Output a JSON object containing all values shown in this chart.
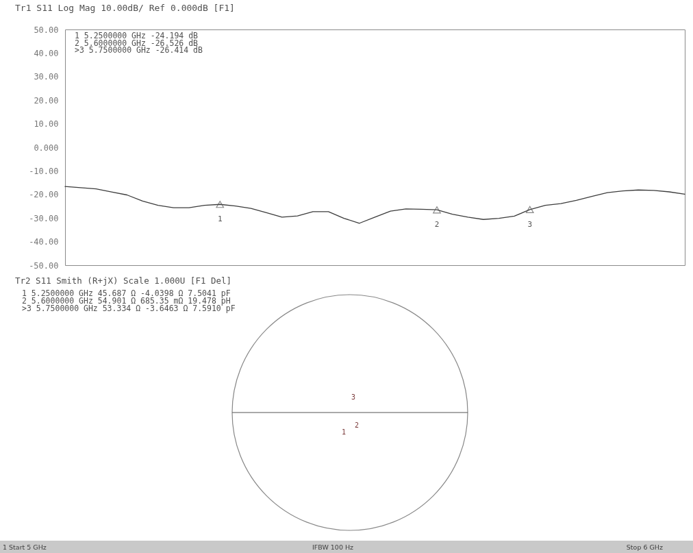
{
  "chart_data": [
    {
      "type": "line",
      "title": "Tr1 S11 Log Mag 10.00dB/ Ref 0.000dB [F1]",
      "categories": [
        null,
        null,
        null,
        null,
        null,
        null,
        null,
        null,
        null,
        null,
        null,
        null,
        null,
        null,
        null,
        null,
        null,
        null,
        null,
        null,
        null,
        null,
        null,
        null,
        null,
        null,
        null,
        null,
        null,
        null,
        null,
        null,
        null,
        null,
        null,
        null,
        null,
        null,
        null,
        null,
        null
      ],
      "series": [
        {
          "color": "#3c3c3c",
          "values": [
            -16.6,
            -17.1,
            -17.6,
            -18.9,
            -20.2,
            -22.8,
            -24.6,
            -25.6,
            -25.6,
            -24.6,
            -24.2,
            -24.9,
            -25.9,
            -27.7,
            -29.6,
            -29.1,
            -27.3,
            -27.3,
            -30.1,
            -32.2,
            -29.6,
            -27.1,
            -26.1,
            -26.3,
            -26.5,
            -28.4,
            -29.6,
            -30.6,
            -30.1,
            -29.2,
            -26.4,
            -24.6,
            -23.9,
            -22.5,
            -20.8,
            -19.2,
            -18.5,
            -18.1,
            -18.3,
            -18.9,
            -19.9
          ]
        },
        {
          "type": "scatter",
          "name": "1",
          "color": "#555555",
          "marker": "triangle",
          "values": [
            null,
            null,
            null,
            null,
            null,
            null,
            null,
            null,
            null,
            null,
            -24.194,
            null,
            null,
            null,
            null,
            null,
            null,
            null,
            null,
            null,
            null,
            null,
            null,
            null,
            null,
            null,
            null,
            null,
            null,
            null,
            null,
            null,
            null,
            null,
            null,
            null,
            null,
            null,
            null,
            null,
            null
          ]
        },
        {
          "type": "scatter",
          "name": "2",
          "color": "#555555",
          "marker": "triangle",
          "values": [
            null,
            null,
            null,
            null,
            null,
            null,
            null,
            null,
            null,
            null,
            null,
            null,
            null,
            null,
            null,
            null,
            null,
            null,
            null,
            null,
            null,
            null,
            null,
            null,
            -26.526,
            null,
            null,
            null,
            null,
            null,
            null,
            null,
            null,
            null,
            null,
            null,
            null,
            null,
            null,
            null,
            null
          ]
        },
        {
          "type": "scatter",
          "name": "3",
          "color": "#555555",
          "marker": "triangle",
          "values": [
            null,
            null,
            null,
            null,
            null,
            null,
            null,
            null,
            null,
            null,
            null,
            null,
            null,
            null,
            null,
            null,
            null,
            null,
            null,
            null,
            null,
            null,
            null,
            null,
            null,
            null,
            null,
            null,
            null,
            null,
            -26.414,
            null,
            null,
            null,
            null,
            null,
            null,
            null,
            null,
            null,
            null
          ]
        }
      ],
      "ylim": [
        -50,
        50
      ],
      "yticks": [
        {
          "value": 50,
          "label": "50.00"
        },
        {
          "value": 40,
          "label": "40.00"
        },
        {
          "value": 30,
          "label": "30.00"
        },
        {
          "value": 20,
          "label": "20.00"
        },
        {
          "value": 10,
          "label": "10.00"
        },
        {
          "value": 0,
          "label": "0.000"
        },
        {
          "value": -10,
          "label": "-10.00"
        },
        {
          "value": -20,
          "label": "-20.00"
        },
        {
          "value": -30,
          "label": "-30.00"
        },
        {
          "value": -40,
          "label": "-40.00"
        },
        {
          "value": -50,
          "label": "-50.00"
        }
      ],
      "tick_labels": "y",
      "grid": false,
      "legend": false,
      "annotations": [
        "1 5.2500000 GHz -24.194 dB",
        "2 5.6000000 GHz -26.526 dB",
        ">3 5.7500000 GHz -26.414 dB"
      ]
    },
    {
      "type": "other",
      "title": "Tr2 S11 Smith (R+jX) Scale 1.000U [F1 Del]",
      "annotations": [
        "1 5.2500000 GHz 45.687 Ω -4.0398 Ω 7.5041 pF",
        "2 5.6000000 GHz 54.901 Ω 685.35 mΩ 19.478 pH",
        ">3 5.7500000 GHz 53.334 Ω -3.6463 Ω 7.5910 pF",
        "3",
        "1",
        "2"
      ]
    },
    {
      "type": "other",
      "annotations": [
        "1 Start 5 GHz",
        "IFBW 100 Hz",
        "Stop 6 GHz"
      ]
    }
  ]
}
